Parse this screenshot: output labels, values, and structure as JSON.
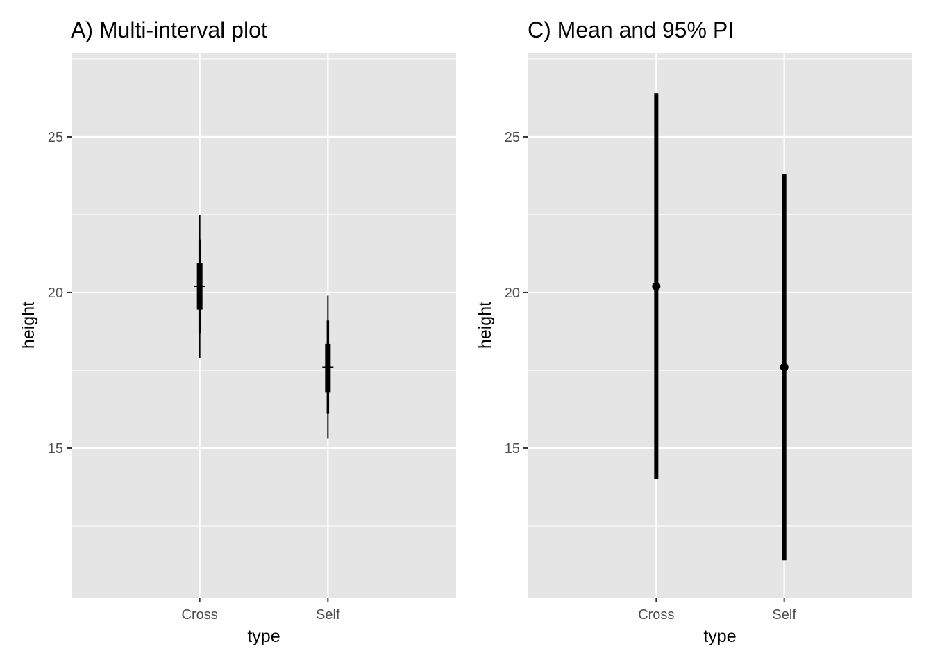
{
  "chart_data": [
    {
      "type": "interval",
      "title": "A) Multi-interval plot",
      "xlabel": "type",
      "ylabel": "height",
      "categories": [
        "Cross",
        "Self"
      ],
      "ylim": [
        10.2,
        27.7
      ],
      "yticks": [
        15,
        20,
        25
      ],
      "yminor": [
        12.5,
        17.5,
        22.5,
        27.5
      ],
      "grid": true,
      "series": [
        {
          "point": [
            20.2,
            17.6
          ],
          "intervals": [
            {
              "low": [
                17.9,
                15.3
              ],
              "high": [
                22.5,
                19.9
              ]
            },
            {
              "low": [
                18.7,
                16.1
              ],
              "high": [
                21.7,
                19.1
              ]
            },
            {
              "low": [
                19.45,
                16.8
              ],
              "high": [
                20.95,
                18.35
              ]
            }
          ]
        }
      ]
    },
    {
      "type": "interval",
      "title": "C) Mean and 95% PI",
      "xlabel": "type",
      "ylabel": "height",
      "categories": [
        "Cross",
        "Self"
      ],
      "ylim": [
        10.2,
        27.7
      ],
      "yticks": [
        15,
        20,
        25
      ],
      "yminor": [
        12.5,
        17.5,
        22.5,
        27.5
      ],
      "grid": true,
      "series": [
        {
          "point": [
            20.2,
            17.6
          ],
          "intervals": [
            {
              "low": [
                14.0,
                11.4
              ],
              "high": [
                26.4,
                23.8
              ]
            }
          ]
        }
      ]
    }
  ]
}
